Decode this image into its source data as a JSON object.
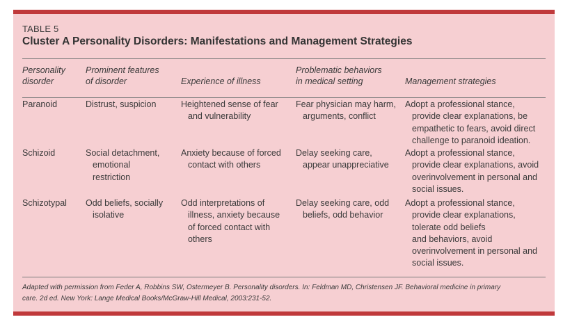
{
  "table": {
    "number": "TABLE 5",
    "title": "Cluster A Personality Disorders: Manifestations and Management Strategies",
    "headers": [
      [
        "Personality",
        "disorder"
      ],
      [
        "Prominent features",
        "of disorder"
      ],
      [
        "",
        "Experience of illness"
      ],
      [
        "Problematic behaviors",
        "in medical setting"
      ],
      [
        "",
        "Management strategies"
      ]
    ],
    "rows": [
      {
        "disorder": [
          "Paranoid"
        ],
        "features": [
          "Distrust, suspicion"
        ],
        "experience": [
          "Heightened sense of fear",
          "and vulnerability"
        ],
        "behaviors": [
          "Fear physician may harm,",
          "arguments, conflict"
        ],
        "management": [
          "Adopt a professional stance,",
          "provide clear explanations, be",
          "empathetic to fears, avoid direct",
          "challenge to paranoid ideation."
        ]
      },
      {
        "disorder": [
          "Schizoid"
        ],
        "features": [
          "Social detachment,",
          "emotional",
          "restriction"
        ],
        "experience": [
          "Anxiety because of forced",
          "contact with others"
        ],
        "behaviors": [
          "Delay seeking care,",
          "appear unappreciative"
        ],
        "management": [
          "Adopt a professional stance,",
          "provide clear explanations, avoid",
          "overinvolvement in personal and",
          "social issues."
        ]
      },
      {
        "disorder": [
          "Schizotypal"
        ],
        "features": [
          "Odd beliefs, socially",
          "isolative"
        ],
        "experience": [
          "Odd interpretations of",
          "illness, anxiety because",
          "of forced contact with",
          "others"
        ],
        "behaviors": [
          "Delay seeking care, odd",
          "beliefs, odd behavior"
        ],
        "management": [
          "Adopt a professional stance,",
          "provide clear explanations,",
          "tolerate odd beliefs",
          "and behaviors, avoid",
          "overinvolvement in personal and",
          "social issues."
        ]
      }
    ],
    "source": [
      "Adapted with permission from Feder A, Robbins SW, Ostermeyer B. Personality disorders. In: Feldman MD, Christensen JF. Behavioral medicine in primary",
      "care. 2d ed. New York: Lange Medical Books/McGraw-Hill Medical, 2003:231-52."
    ]
  }
}
